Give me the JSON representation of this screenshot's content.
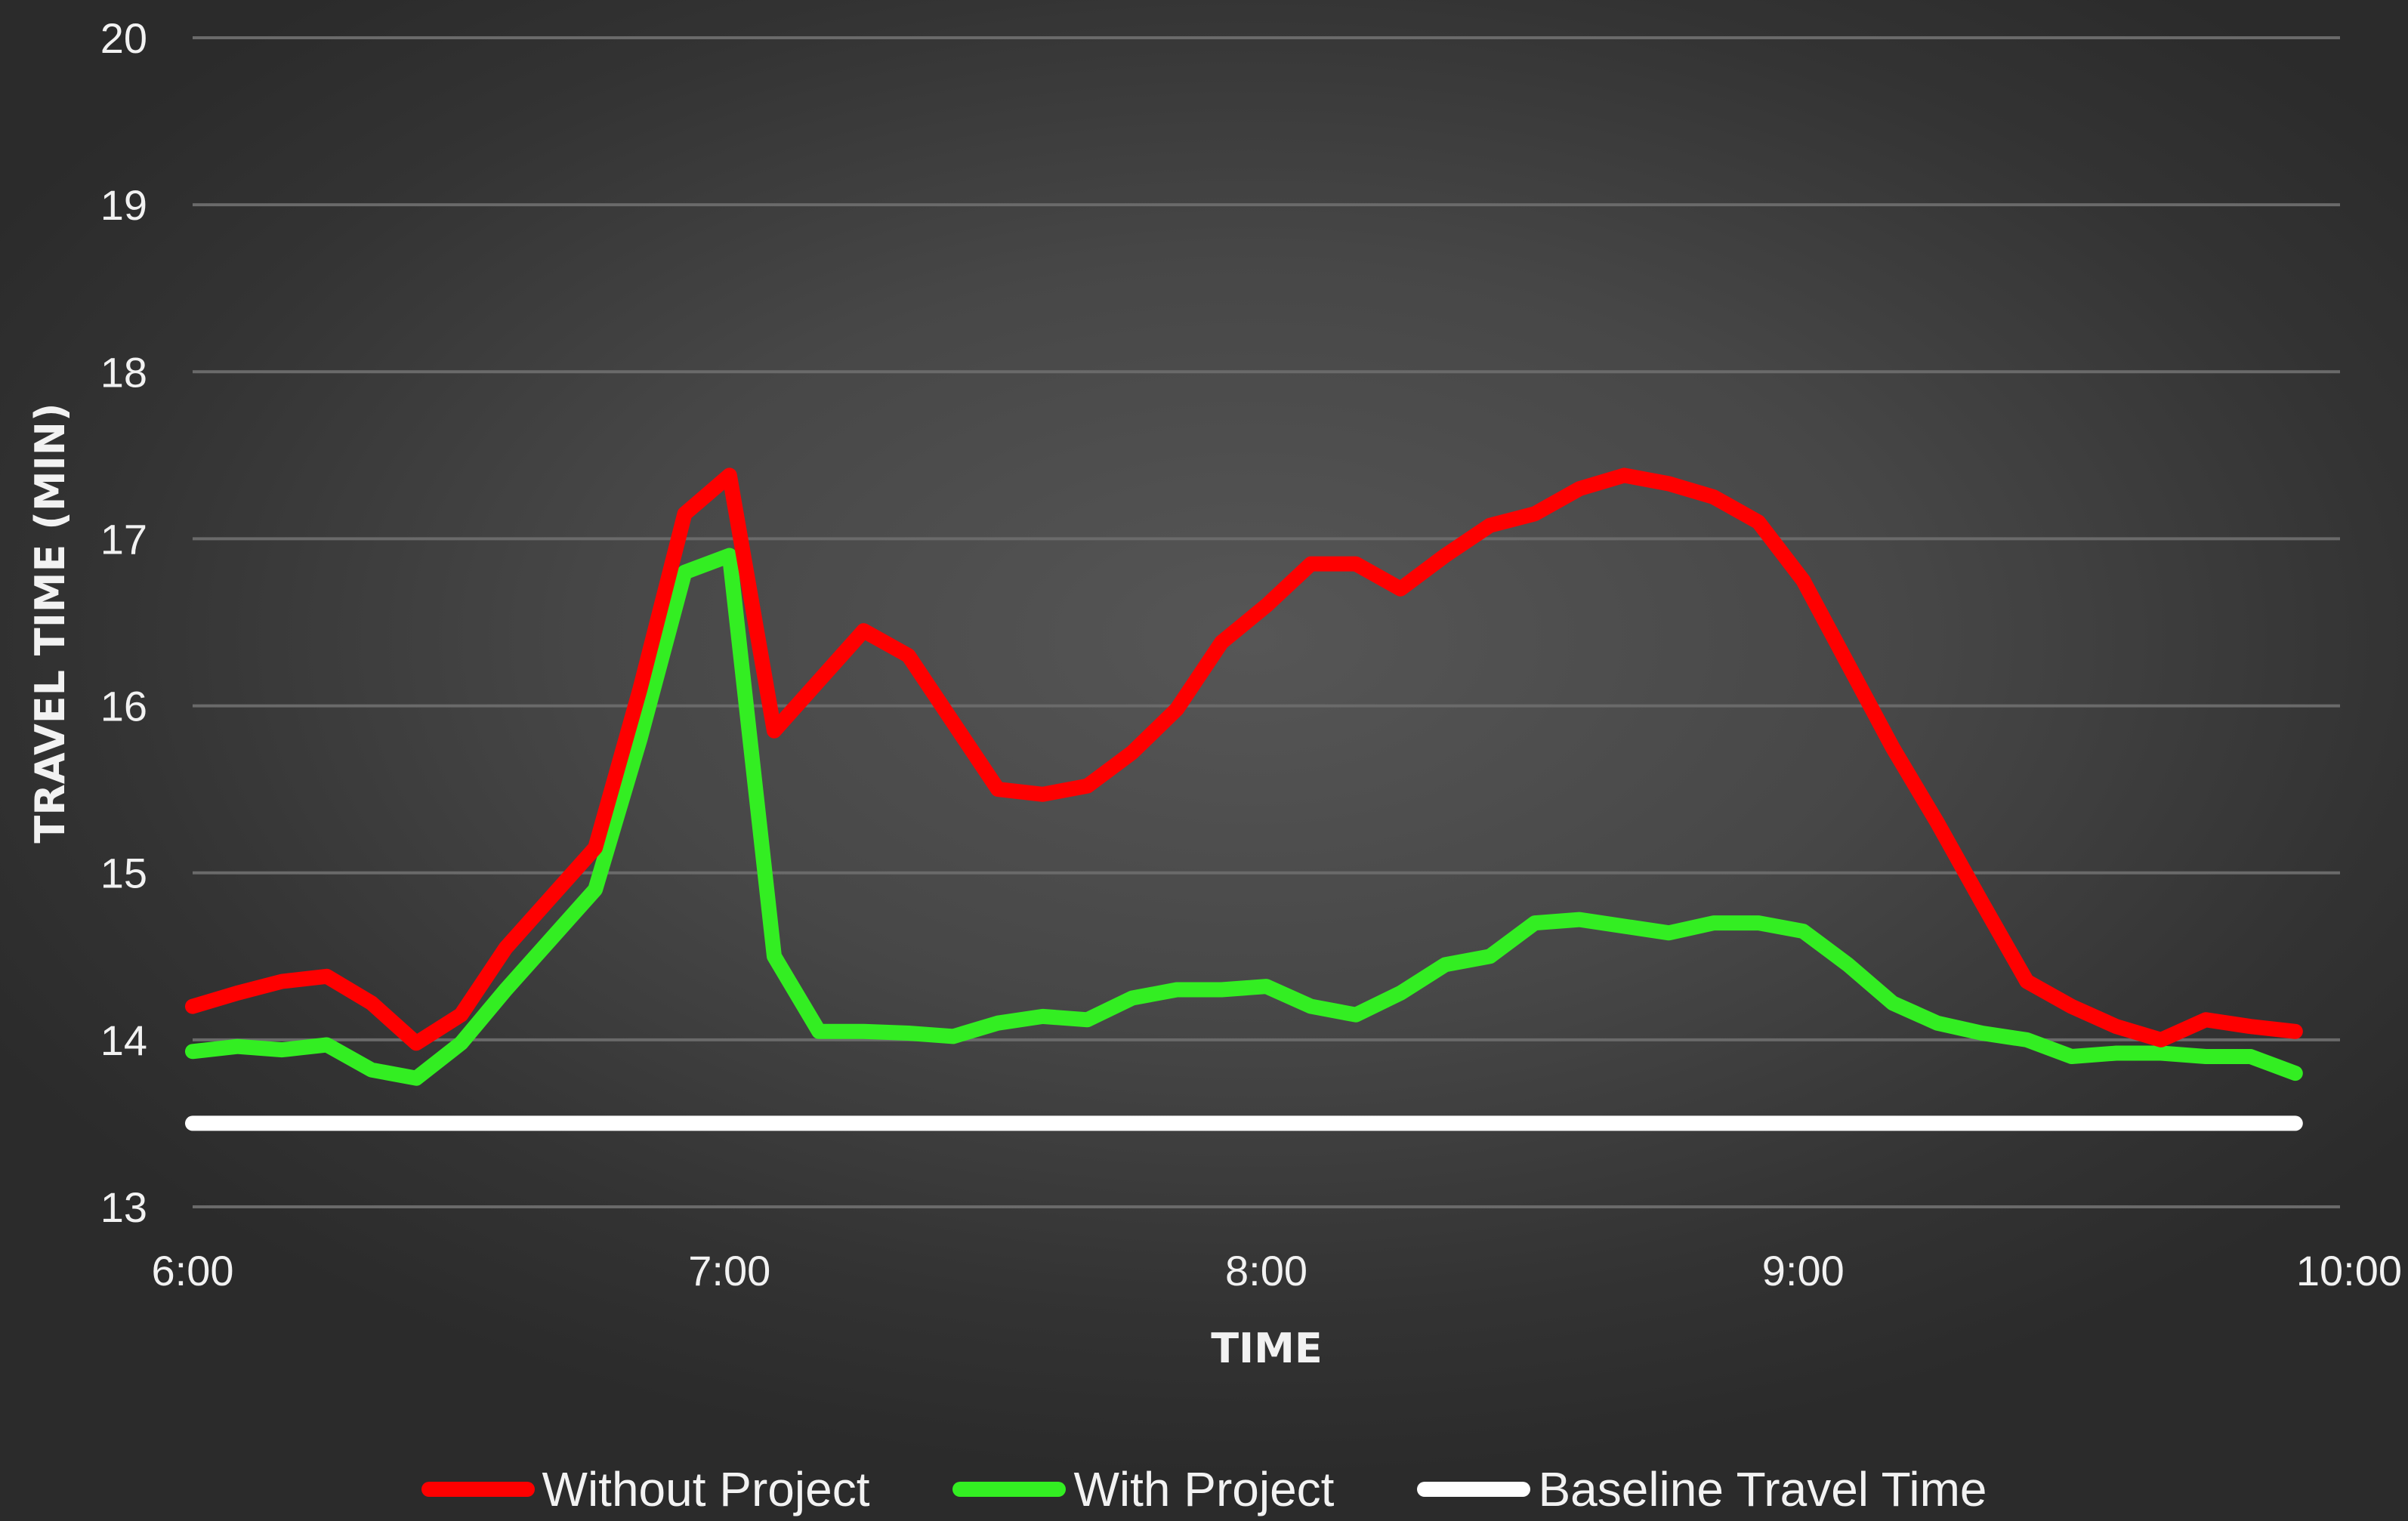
{
  "chart_data": {
    "type": "line",
    "title": "",
    "xlabel": "TIME",
    "ylabel": "TRAVEL TIME (MIN)",
    "x_tick_labels": [
      "6:00",
      "7:00",
      "8:00",
      "9:00",
      "10:00"
    ],
    "y_tick_labels": [
      "13",
      "14",
      "15",
      "16",
      "17",
      "18",
      "19",
      "20"
    ],
    "xlim": [
      "6:00",
      "10:00"
    ],
    "ylim": [
      13,
      20
    ],
    "grid": true,
    "legend_position": "bottom",
    "x": [
      "6:00",
      "6:05",
      "6:10",
      "6:15",
      "6:20",
      "6:25",
      "6:30",
      "6:35",
      "6:40",
      "6:45",
      "6:50",
      "6:55",
      "7:00",
      "7:05",
      "7:10",
      "7:15",
      "7:20",
      "7:25",
      "7:30",
      "7:35",
      "7:40",
      "7:45",
      "7:50",
      "7:55",
      "8:00",
      "8:05",
      "8:10",
      "8:15",
      "8:20",
      "8:25",
      "8:30",
      "8:35",
      "8:40",
      "8:45",
      "8:50",
      "8:55",
      "9:00",
      "9:05",
      "9:10",
      "9:15",
      "9:20",
      "9:25",
      "9:30",
      "9:35",
      "9:40",
      "9:45",
      "9:50",
      "9:55"
    ],
    "series": [
      {
        "name": "Without Project",
        "color": "#ff0000",
        "values": [
          14.2,
          14.28,
          14.35,
          14.38,
          14.22,
          13.98,
          14.15,
          14.55,
          14.85,
          15.15,
          16.1,
          17.15,
          17.38,
          15.85,
          16.15,
          16.45,
          16.3,
          15.9,
          15.5,
          15.47,
          15.52,
          15.72,
          15.98,
          16.38,
          16.6,
          16.85,
          16.85,
          16.7,
          16.9,
          17.08,
          17.15,
          17.3,
          17.38,
          17.33,
          17.25,
          17.1,
          16.75,
          16.25,
          15.75,
          15.3,
          14.82,
          14.35,
          14.2,
          14.08,
          14.0,
          14.12,
          14.08,
          14.05
        ]
      },
      {
        "name": "With Project",
        "color": "#33ee22",
        "values": [
          13.93,
          13.96,
          13.94,
          13.97,
          13.82,
          13.77,
          13.98,
          14.3,
          14.6,
          14.9,
          15.8,
          16.8,
          16.9,
          14.5,
          14.05,
          14.05,
          14.04,
          14.02,
          14.1,
          14.14,
          14.12,
          14.25,
          14.3,
          14.3,
          14.32,
          14.2,
          14.15,
          14.28,
          14.45,
          14.5,
          14.7,
          14.72,
          14.68,
          14.64,
          14.7,
          14.7,
          14.65,
          14.45,
          14.22,
          14.1,
          14.04,
          14.0,
          13.9,
          13.92,
          13.92,
          13.9,
          13.9,
          13.8
        ]
      },
      {
        "name": "Baseline Travel Time",
        "color": "#ffffff",
        "values": [
          13.5,
          13.5,
          13.5,
          13.5,
          13.5,
          13.5,
          13.5,
          13.5,
          13.5,
          13.5,
          13.5,
          13.5,
          13.5,
          13.5,
          13.5,
          13.5,
          13.5,
          13.5,
          13.5,
          13.5,
          13.5,
          13.5,
          13.5,
          13.5,
          13.5,
          13.5,
          13.5,
          13.5,
          13.5,
          13.5,
          13.5,
          13.5,
          13.5,
          13.5,
          13.5,
          13.5,
          13.5,
          13.5,
          13.5,
          13.5,
          13.5,
          13.5,
          13.5,
          13.5,
          13.5,
          13.5,
          13.5,
          13.5
        ]
      }
    ]
  }
}
